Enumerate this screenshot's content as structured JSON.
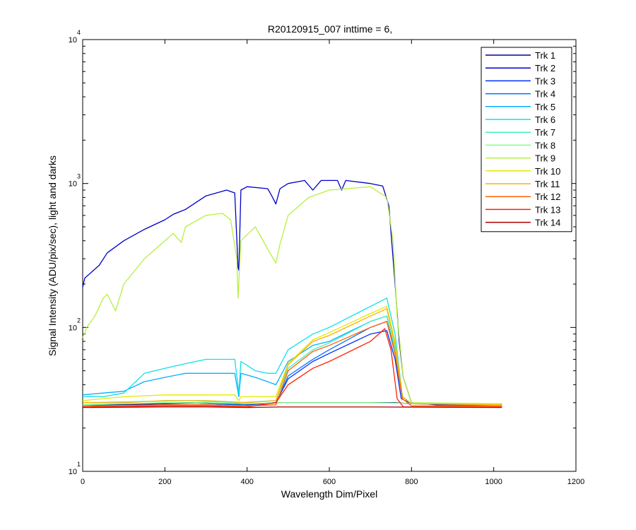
{
  "chart_data": {
    "type": "line",
    "title": "R20120915_007 inttime = 6,",
    "xlabel": "Wavelength Dim/Pixel",
    "ylabel": "Signal Intensity (ADU/pix/sec), light and darks",
    "xlim": [
      0,
      1200
    ],
    "ylim": [
      10,
      10000
    ],
    "yscale": "log",
    "x_ticks": [
      0,
      200,
      400,
      600,
      800,
      1000,
      1200
    ],
    "x_tick_labels": [
      "0",
      "200",
      "400",
      "600",
      "800",
      "1000",
      "1200"
    ],
    "y_ticks": [
      {
        "value": 10,
        "base": "10",
        "exp": "1"
      },
      {
        "value": 100,
        "base": "10",
        "exp": "2"
      },
      {
        "value": 1000,
        "base": "10",
        "exp": "3"
      },
      {
        "value": 10000,
        "base": "10",
        "exp": "4"
      }
    ],
    "legend_position": "top-right",
    "series": [
      {
        "name": "Trk 1",
        "color": "#00008f",
        "points": [
          [
            0,
            29
          ],
          [
            100,
            29
          ],
          [
            200,
            29.5
          ],
          [
            300,
            30
          ],
          [
            400,
            29
          ],
          [
            480,
            30
          ],
          [
            600,
            30
          ],
          [
            700,
            30
          ],
          [
            760,
            30
          ],
          [
            800,
            29.5
          ],
          [
            900,
            29.5
          ],
          [
            1020,
            29.5
          ]
        ]
      },
      {
        "name": "Trk 2",
        "color": "#0000c8",
        "points": [
          [
            0,
            190
          ],
          [
            5,
            220
          ],
          [
            20,
            240
          ],
          [
            40,
            270
          ],
          [
            60,
            330
          ],
          [
            100,
            400
          ],
          [
            150,
            480
          ],
          [
            200,
            560
          ],
          [
            220,
            610
          ],
          [
            250,
            660
          ],
          [
            300,
            820
          ],
          [
            350,
            900
          ],
          [
            370,
            860
          ],
          [
            378,
            260
          ],
          [
            380,
            250
          ],
          [
            385,
            900
          ],
          [
            400,
            950
          ],
          [
            450,
            920
          ],
          [
            460,
            820
          ],
          [
            470,
            720
          ],
          [
            480,
            920
          ],
          [
            500,
            1000
          ],
          [
            540,
            1050
          ],
          [
            560,
            900
          ],
          [
            580,
            1050
          ],
          [
            620,
            1050
          ],
          [
            630,
            900
          ],
          [
            640,
            1050
          ],
          [
            700,
            1000
          ],
          [
            730,
            960
          ],
          [
            745,
            700
          ],
          [
            760,
            200
          ],
          [
            770,
            80
          ],
          [
            780,
            45
          ],
          [
            800,
            30
          ],
          [
            860,
            29
          ],
          [
            1020,
            29
          ]
        ]
      },
      {
        "name": "Trk 3",
        "color": "#0030ff",
        "points": [
          [
            0,
            29
          ],
          [
            260,
            30
          ],
          [
            380,
            29
          ],
          [
            470,
            30
          ],
          [
            500,
            44
          ],
          [
            560,
            58
          ],
          [
            600,
            66
          ],
          [
            700,
            90
          ],
          [
            740,
            95
          ],
          [
            760,
            60
          ],
          [
            775,
            32
          ],
          [
            800,
            29.5
          ],
          [
            1020,
            29
          ]
        ]
      },
      {
        "name": "Trk 4",
        "color": "#0070ff",
        "points": [
          [
            0,
            29
          ],
          [
            260,
            30
          ],
          [
            380,
            29
          ],
          [
            470,
            30
          ],
          [
            500,
            46
          ],
          [
            560,
            60
          ],
          [
            600,
            70
          ],
          [
            700,
            100
          ],
          [
            740,
            110
          ],
          [
            760,
            70
          ],
          [
            778,
            33
          ],
          [
            800,
            29.5
          ],
          [
            1020,
            29
          ]
        ]
      },
      {
        "name": "Trk 5",
        "color": "#00b0ff",
        "points": [
          [
            0,
            34
          ],
          [
            50,
            35
          ],
          [
            100,
            36
          ],
          [
            150,
            42
          ],
          [
            200,
            45
          ],
          [
            250,
            48
          ],
          [
            300,
            48
          ],
          [
            340,
            48
          ],
          [
            370,
            48
          ],
          [
            380,
            33
          ],
          [
            385,
            48
          ],
          [
            420,
            45
          ],
          [
            450,
            42
          ],
          [
            470,
            40
          ],
          [
            500,
            58
          ],
          [
            560,
            75
          ],
          [
            600,
            80
          ],
          [
            700,
            110
          ],
          [
            740,
            120
          ],
          [
            760,
            70
          ],
          [
            778,
            33
          ],
          [
            800,
            29.5
          ],
          [
            1020,
            29.5
          ]
        ]
      },
      {
        "name": "Trk 6",
        "color": "#10e0e8",
        "points": [
          [
            0,
            33
          ],
          [
            50,
            33
          ],
          [
            100,
            35
          ],
          [
            150,
            48
          ],
          [
            200,
            52
          ],
          [
            250,
            56
          ],
          [
            300,
            60
          ],
          [
            370,
            60
          ],
          [
            380,
            35
          ],
          [
            385,
            58
          ],
          [
            420,
            50
          ],
          [
            450,
            48
          ],
          [
            470,
            48
          ],
          [
            500,
            70
          ],
          [
            560,
            90
          ],
          [
            600,
            100
          ],
          [
            700,
            140
          ],
          [
            740,
            160
          ],
          [
            760,
            90
          ],
          [
            778,
            33
          ],
          [
            800,
            29.5
          ],
          [
            1020,
            29.5
          ]
        ]
      },
      {
        "name": "Trk 7",
        "color": "#40f0c0",
        "points": [
          [
            0,
            30
          ],
          [
            260,
            31
          ],
          [
            380,
            30
          ],
          [
            470,
            31
          ],
          [
            500,
            52
          ],
          [
            560,
            70
          ],
          [
            600,
            78
          ],
          [
            700,
            110
          ],
          [
            740,
            120
          ],
          [
            760,
            70
          ],
          [
            778,
            33
          ],
          [
            800,
            29.5
          ],
          [
            1020,
            29.5
          ]
        ]
      },
      {
        "name": "Trk 8",
        "color": "#80ff80",
        "points": [
          [
            0,
            29
          ],
          [
            100,
            29.5
          ],
          [
            200,
            30
          ],
          [
            300,
            30
          ],
          [
            400,
            29.5
          ],
          [
            480,
            30
          ],
          [
            600,
            30
          ],
          [
            700,
            30
          ],
          [
            1020,
            29
          ]
        ]
      },
      {
        "name": "Trk 9",
        "color": "#b8f040",
        "points": [
          [
            0,
            85
          ],
          [
            10,
            100
          ],
          [
            30,
            120
          ],
          [
            50,
            160
          ],
          [
            60,
            170
          ],
          [
            80,
            130
          ],
          [
            100,
            200
          ],
          [
            150,
            300
          ],
          [
            200,
            400
          ],
          [
            220,
            450
          ],
          [
            240,
            390
          ],
          [
            250,
            500
          ],
          [
            300,
            600
          ],
          [
            340,
            620
          ],
          [
            360,
            560
          ],
          [
            375,
            300
          ],
          [
            378,
            160
          ],
          [
            385,
            400
          ],
          [
            420,
            500
          ],
          [
            450,
            350
          ],
          [
            470,
            280
          ],
          [
            480,
            380
          ],
          [
            500,
            600
          ],
          [
            550,
            800
          ],
          [
            600,
            900
          ],
          [
            700,
            950
          ],
          [
            740,
            800
          ],
          [
            755,
            400
          ],
          [
            765,
            120
          ],
          [
            780,
            45
          ],
          [
            800,
            30
          ],
          [
            1020,
            29.5
          ]
        ]
      },
      {
        "name": "Trk 10",
        "color": "#e8e800",
        "points": [
          [
            0,
            31
          ],
          [
            50,
            32
          ],
          [
            100,
            33
          ],
          [
            200,
            34
          ],
          [
            300,
            34
          ],
          [
            370,
            34
          ],
          [
            380,
            31
          ],
          [
            385,
            33
          ],
          [
            470,
            33
          ],
          [
            500,
            56
          ],
          [
            560,
            82
          ],
          [
            600,
            92
          ],
          [
            700,
            125
          ],
          [
            740,
            140
          ],
          [
            760,
            80
          ],
          [
            778,
            33
          ],
          [
            800,
            29.5
          ],
          [
            1020,
            29.5
          ]
        ]
      },
      {
        "name": "Trk 11",
        "color": "#ffb000",
        "points": [
          [
            0,
            30
          ],
          [
            100,
            30
          ],
          [
            200,
            31
          ],
          [
            300,
            31
          ],
          [
            400,
            30
          ],
          [
            470,
            31
          ],
          [
            500,
            55
          ],
          [
            560,
            80
          ],
          [
            600,
            88
          ],
          [
            700,
            120
          ],
          [
            740,
            135
          ],
          [
            760,
            75
          ],
          [
            778,
            33
          ],
          [
            800,
            29.5
          ],
          [
            1020,
            29
          ]
        ]
      },
      {
        "name": "Trk 12",
        "color": "#ff6000",
        "points": [
          [
            0,
            28.5
          ],
          [
            200,
            29
          ],
          [
            300,
            29
          ],
          [
            400,
            28.5
          ],
          [
            470,
            29
          ],
          [
            500,
            50
          ],
          [
            560,
            68
          ],
          [
            600,
            75
          ],
          [
            700,
            100
          ],
          [
            740,
            110
          ],
          [
            760,
            65
          ],
          [
            778,
            32
          ],
          [
            800,
            28.5
          ],
          [
            1020,
            28.5
          ]
        ]
      },
      {
        "name": "Trk 13",
        "color": "#ff2000",
        "points": [
          [
            0,
            28
          ],
          [
            200,
            28.5
          ],
          [
            300,
            28.5
          ],
          [
            400,
            28
          ],
          [
            470,
            30
          ],
          [
            500,
            40
          ],
          [
            560,
            52
          ],
          [
            600,
            58
          ],
          [
            700,
            80
          ],
          [
            735,
            98
          ],
          [
            750,
            70
          ],
          [
            765,
            32
          ],
          [
            780,
            28
          ],
          [
            1020,
            28
          ]
        ]
      },
      {
        "name": "Trk 14",
        "color": "#b00000",
        "points": [
          [
            0,
            27.8
          ],
          [
            200,
            28
          ],
          [
            300,
            28
          ],
          [
            400,
            27.8
          ],
          [
            480,
            28
          ],
          [
            600,
            28
          ],
          [
            700,
            28
          ],
          [
            1020,
            27.8
          ]
        ]
      }
    ]
  }
}
